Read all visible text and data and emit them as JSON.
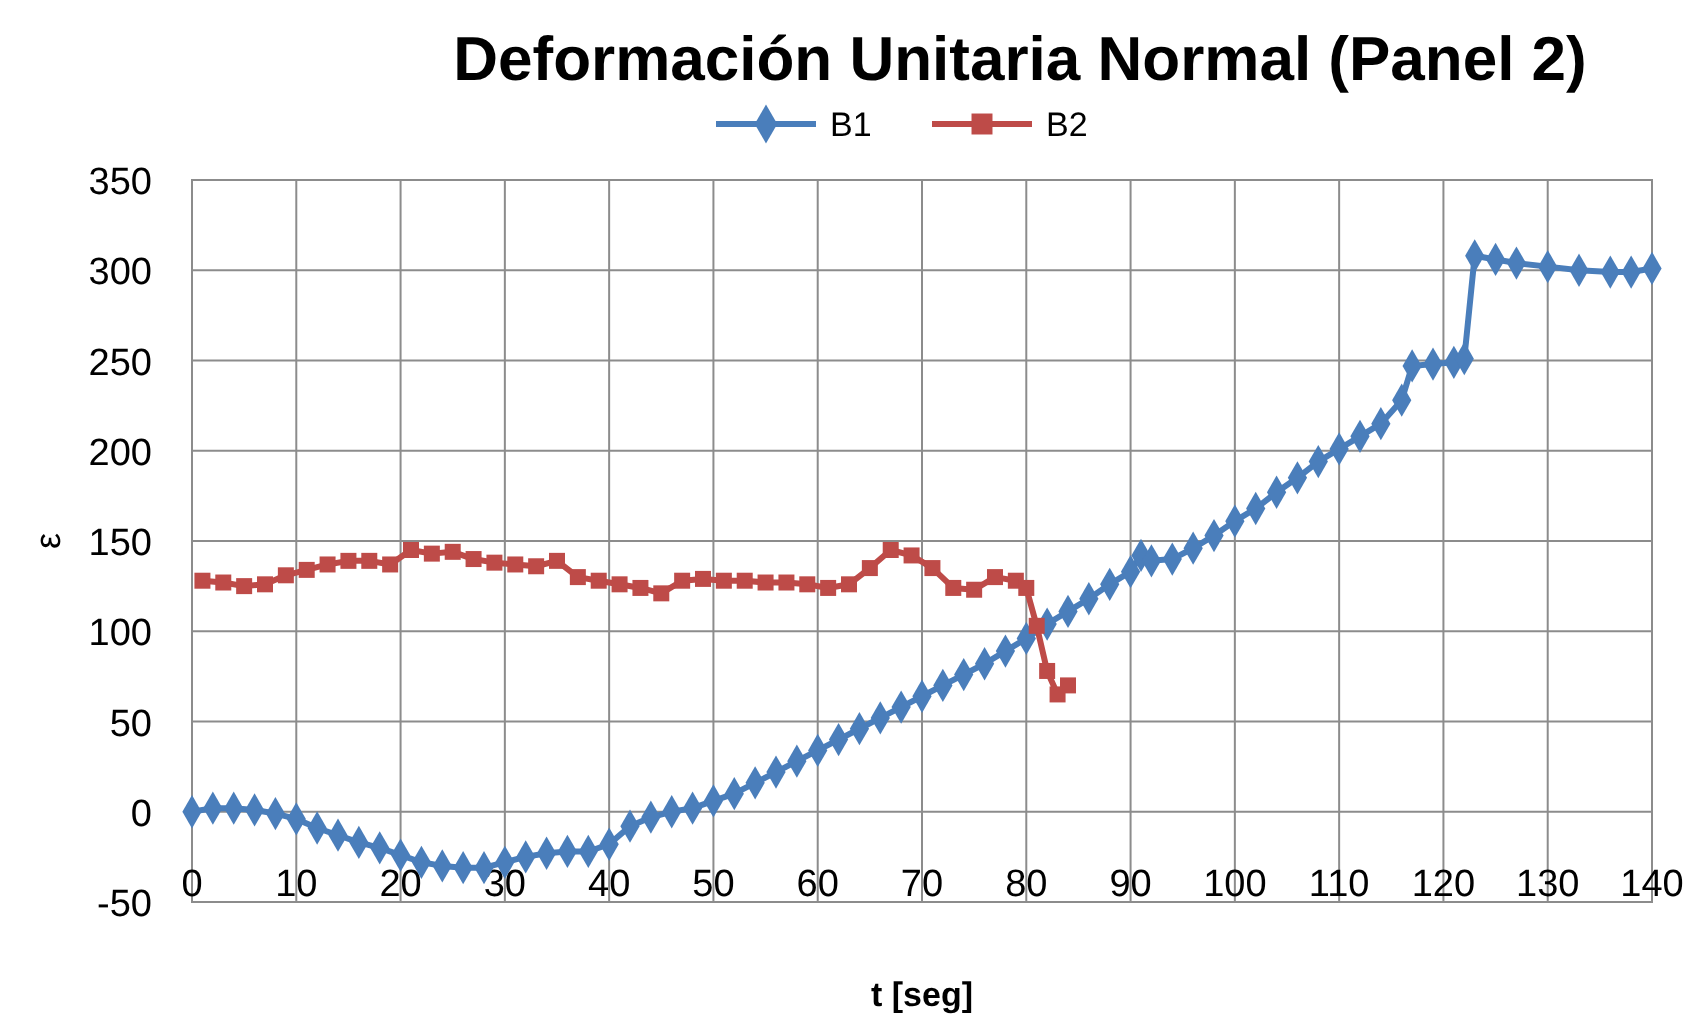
{
  "chart_data": {
    "type": "line",
    "title": "Deformación Unitaria Normal (Panel 2)",
    "xlabel": "t [seg]",
    "ylabel": "ε",
    "xlim": [
      0,
      140
    ],
    "xticks": [
      0,
      10,
      20,
      30,
      40,
      50,
      60,
      70,
      80,
      90,
      100,
      110,
      120,
      130,
      140
    ],
    "ylim": [
      -50,
      350
    ],
    "yticks": [
      -50,
      0,
      50,
      100,
      150,
      200,
      250,
      300,
      350
    ],
    "grid": true,
    "legend": "top",
    "series": [
      {
        "name": "B1",
        "color": "#4a7ebb",
        "marker": "diamond",
        "x": [
          0,
          2,
          4,
          6,
          8,
          10,
          12,
          14,
          16,
          18,
          20,
          22,
          24,
          26,
          28,
          30,
          32,
          34,
          36,
          38,
          40,
          42,
          44,
          46,
          48,
          50,
          52,
          54,
          56,
          58,
          60,
          62,
          64,
          66,
          68,
          70,
          72,
          74,
          76,
          78,
          80,
          82,
          84,
          86,
          88,
          90,
          91,
          92,
          94,
          96,
          98,
          100,
          102,
          104,
          106,
          108,
          110,
          112,
          114,
          116,
          117,
          119,
          121,
          122,
          123,
          125,
          127,
          130,
          133,
          136,
          138,
          140
        ],
        "values": [
          0,
          2,
          2,
          1,
          -1,
          -4,
          -9,
          -13,
          -17,
          -20,
          -24,
          -28,
          -30,
          -31,
          -31,
          -28,
          -25,
          -23,
          -22,
          -22,
          -18,
          -8,
          -3,
          0,
          2,
          6,
          10,
          16,
          22,
          28,
          34,
          40,
          46,
          52,
          58,
          64,
          70,
          76,
          82,
          89,
          96,
          104,
          111,
          118,
          126,
          133,
          142,
          139,
          140,
          146,
          153,
          161,
          168,
          177,
          185,
          194,
          201,
          208,
          215,
          228,
          247,
          248,
          249,
          251,
          308,
          306,
          304,
          302,
          300,
          299,
          299,
          301
        ]
      },
      {
        "name": "B2",
        "color": "#be4b48",
        "marker": "square",
        "x": [
          1,
          3,
          5,
          7,
          9,
          11,
          13,
          15,
          17,
          19,
          21,
          23,
          25,
          27,
          29,
          31,
          33,
          35,
          37,
          39,
          41,
          43,
          45,
          47,
          49,
          51,
          53,
          55,
          57,
          59,
          61,
          63,
          65,
          67,
          69,
          71,
          73,
          75,
          77,
          79,
          80,
          81,
          82,
          83,
          84
        ],
        "values": [
          128,
          127,
          125,
          126,
          131,
          134,
          137,
          139,
          139,
          137,
          145,
          143,
          144,
          140,
          138,
          137,
          136,
          139,
          130,
          128,
          126,
          124,
          121,
          128,
          129,
          128,
          128,
          127,
          127,
          126,
          124,
          126,
          135,
          145,
          142,
          135,
          124,
          123,
          130,
          128,
          124,
          103,
          78,
          65,
          70
        ]
      }
    ]
  }
}
